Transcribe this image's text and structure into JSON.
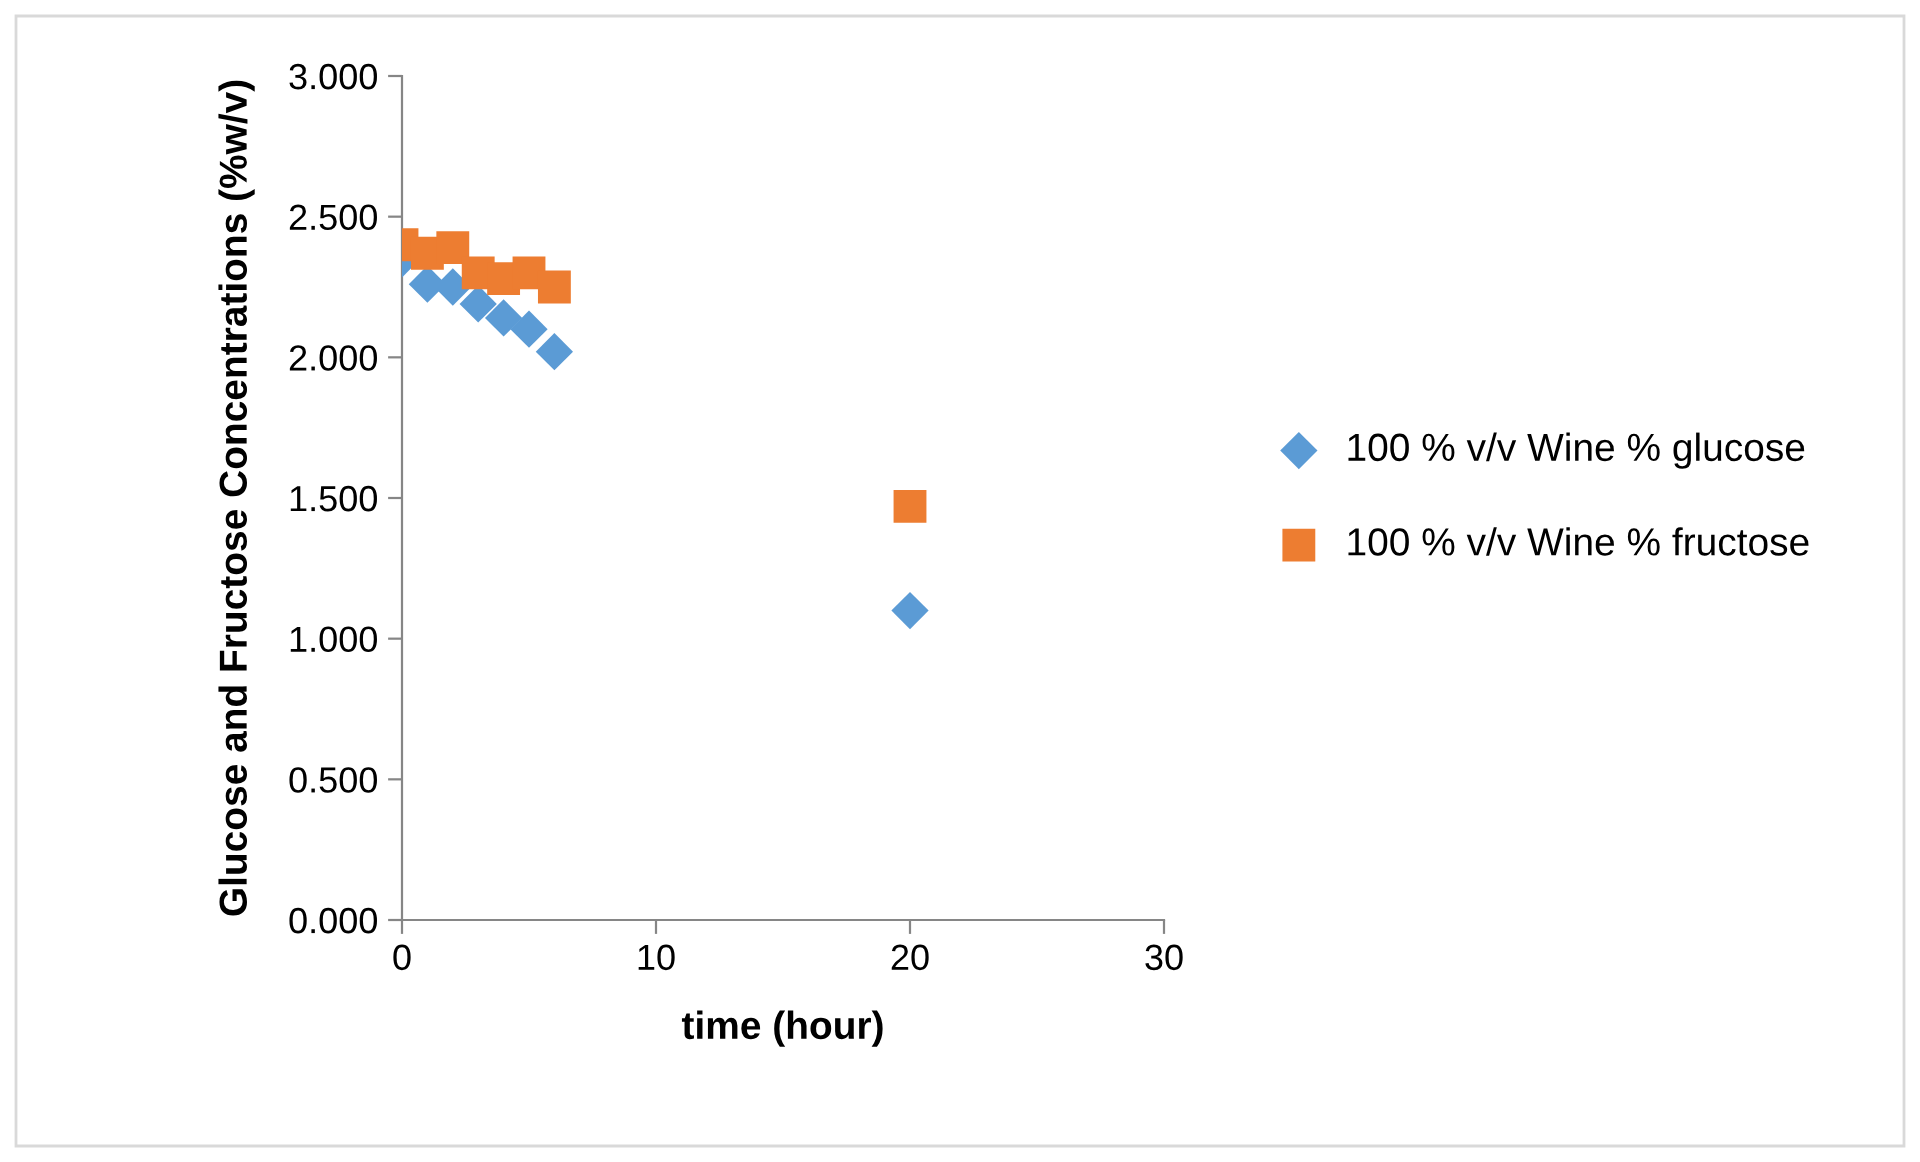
{
  "chart_data": {
    "type": "scatter",
    "xlabel": "time (hour)",
    "ylabel": "Glucose and Fructose Concentrations (%w/v)",
    "series": [
      {
        "name": "100 % v/v Wine % glucose",
        "color": "#5b9bd5",
        "marker": "diamond",
        "x": [
          0,
          1,
          2,
          3,
          4,
          5,
          6,
          20
        ],
        "values": [
          2.35,
          2.26,
          2.25,
          2.19,
          2.14,
          2.1,
          2.02,
          1.1
        ]
      },
      {
        "name": "100 % v/v Wine % fructose",
        "color": "#ed7d31",
        "marker": "square",
        "x": [
          0,
          1,
          2,
          3,
          4,
          5,
          6,
          20
        ],
        "values": [
          2.4,
          2.37,
          2.39,
          2.3,
          2.28,
          2.3,
          2.25,
          1.47
        ]
      }
    ],
    "xlim": [
      0,
      30
    ],
    "xticks": [
      0,
      10,
      20,
      30
    ],
    "ylim": [
      0,
      3
    ],
    "yticks": [
      {
        "value": 0,
        "label": "0.000"
      },
      {
        "value": 0.5,
        "label": "0.500"
      },
      {
        "value": 1,
        "label": "1.000"
      },
      {
        "value": 1.5,
        "label": "1.500"
      },
      {
        "value": 2,
        "label": "2.000"
      },
      {
        "value": 2.5,
        "label": "2.500"
      },
      {
        "value": 3,
        "label": "3.000"
      }
    ],
    "grid": false,
    "legend": "right"
  }
}
